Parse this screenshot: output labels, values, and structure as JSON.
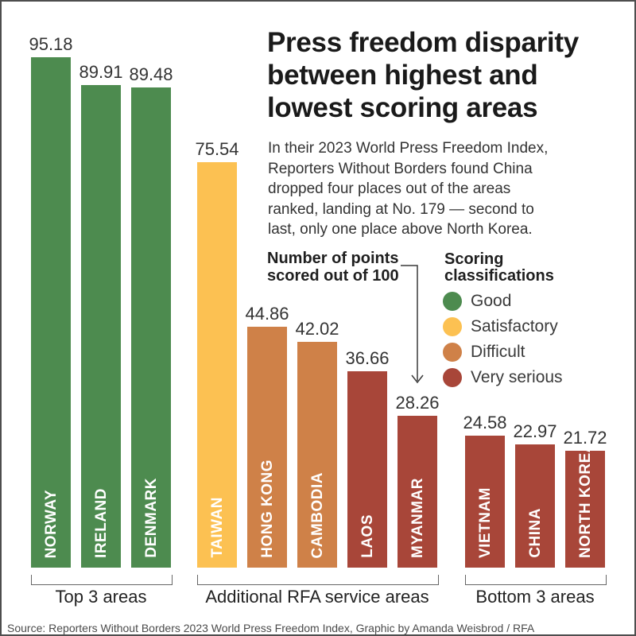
{
  "header": {
    "title_lines": [
      "Press freedom disparity",
      "between highest and",
      "lowest scoring areas"
    ],
    "intro_lines": [
      "In their 2023 World Press Freedom Index,",
      "Reporters Without Borders found China",
      "dropped four places out of the areas",
      "ranked, landing at No. 179 — second to",
      "last, only one place above North Korea."
    ]
  },
  "annotation": {
    "lines": [
      "Number of points",
      "scored out of 100"
    ]
  },
  "legend": {
    "title_lines": [
      "Scoring",
      "classifications"
    ],
    "items": [
      {
        "label": "Good",
        "color": "#4d8b4f"
      },
      {
        "label": "Satisfactory",
        "color": "#fcc152"
      },
      {
        "label": "Difficult",
        "color": "#cf8148"
      },
      {
        "label": "Very serious",
        "color": "#a84639"
      }
    ]
  },
  "source": "Source: Reporters Without Borders 2023 World Press Freedom Index, Graphic by Amanda Weisbrod / RFA",
  "chart_data": {
    "type": "bar",
    "title": "Press freedom disparity between highest and lowest scoring areas",
    "ylabel": "Number of points scored out of 100",
    "ylim": [
      0,
      100
    ],
    "grid": false,
    "legend_position": "right",
    "categories": [
      "NORWAY",
      "IRELAND",
      "DENMARK",
      "TAIWAN",
      "HONG KONG",
      "CAMBODIA",
      "LAOS",
      "MYANMAR",
      "VIETNAM",
      "CHINA",
      "NORTH KOREA"
    ],
    "values": [
      95.18,
      89.91,
      89.48,
      75.54,
      44.86,
      42.02,
      36.66,
      28.26,
      24.58,
      22.97,
      21.72
    ],
    "classifications": [
      "Good",
      "Good",
      "Good",
      "Satisfactory",
      "Difficult",
      "Difficult",
      "Very serious",
      "Very serious",
      "Very serious",
      "Very serious",
      "Very serious"
    ],
    "groups": [
      {
        "label": "Top 3 areas",
        "count": 3
      },
      {
        "label": "Additional RFA service areas",
        "count": 5
      },
      {
        "label": "Bottom 3 areas",
        "count": 3
      }
    ]
  }
}
